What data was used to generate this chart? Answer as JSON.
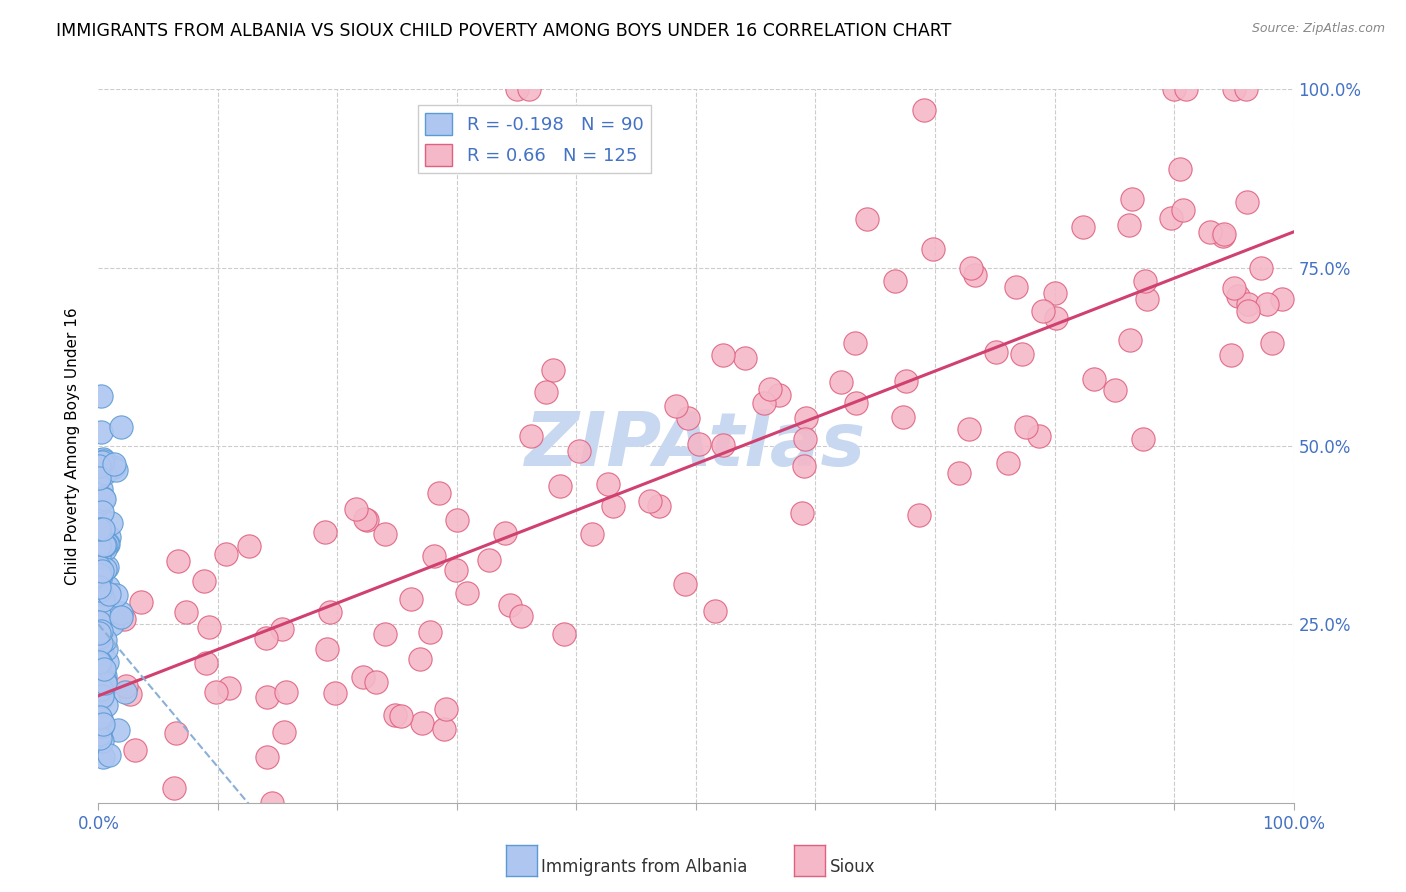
{
  "title": "IMMIGRANTS FROM ALBANIA VS SIOUX CHILD POVERTY AMONG BOYS UNDER 16 CORRELATION CHART",
  "source": "Source: ZipAtlas.com",
  "ylabel": "Child Poverty Among Boys Under 16",
  "xlim": [
    0.0,
    1.0
  ],
  "ylim": [
    0.0,
    1.0
  ],
  "xticks": [
    0.0,
    0.1,
    0.2,
    0.3,
    0.4,
    0.5,
    0.6,
    0.7,
    0.8,
    0.9,
    1.0
  ],
  "yticks": [
    0.0,
    0.25,
    0.5,
    0.75,
    1.0
  ],
  "xticklabels": [
    "0.0%",
    "",
    "",
    "",
    "",
    "",
    "",
    "",
    "",
    "",
    "100.0%"
  ],
  "yticklabels": [
    "",
    "25.0%",
    "50.0%",
    "75.0%",
    "100.0%"
  ],
  "albania_R": -0.198,
  "albania_N": 90,
  "sioux_R": 0.66,
  "sioux_N": 125,
  "albania_fill": "#aec6f0",
  "albania_edge": "#5b9bd5",
  "sioux_fill": "#f4b8c8",
  "sioux_edge": "#e06080",
  "sioux_line_color": "#d04070",
  "albania_line_color": "#8ab0d8",
  "watermark_color": "#c8d8f0",
  "background_color": "#ffffff",
  "grid_color": "#cccccc",
  "title_fontsize": 12.5,
  "label_fontsize": 11,
  "tick_fontsize": 12,
  "legend_fontsize": 13
}
